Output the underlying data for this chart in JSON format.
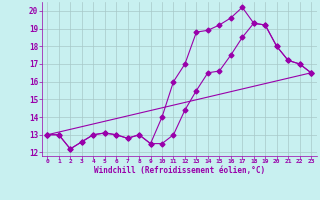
{
  "xlabel": "Windchill (Refroidissement éolien,°C)",
  "bg_color": "#c8f0f0",
  "grid_color": "#a8c8c8",
  "line_color": "#9900aa",
  "xlim": [
    -0.5,
    23.5
  ],
  "ylim": [
    11.8,
    20.5
  ],
  "xticks": [
    0,
    1,
    2,
    3,
    4,
    5,
    6,
    7,
    8,
    9,
    10,
    11,
    12,
    13,
    14,
    15,
    16,
    17,
    18,
    19,
    20,
    21,
    22,
    23
  ],
  "yticks": [
    12,
    13,
    14,
    15,
    16,
    17,
    18,
    19,
    20
  ],
  "line1_x": [
    0,
    1,
    2,
    3,
    4,
    5,
    6,
    7,
    8,
    9,
    10,
    11,
    12,
    13,
    14,
    15,
    16,
    17,
    18,
    19,
    20,
    21,
    22,
    23
  ],
  "line1_y": [
    13.0,
    13.0,
    12.2,
    12.6,
    13.0,
    13.1,
    13.0,
    12.8,
    13.0,
    12.5,
    12.5,
    13.0,
    14.4,
    15.5,
    16.5,
    16.6,
    17.5,
    18.5,
    19.3,
    19.2,
    18.0,
    17.2,
    17.0,
    16.5
  ],
  "line2_x": [
    0,
    1,
    2,
    3,
    4,
    5,
    6,
    7,
    8,
    9,
    10,
    11,
    12,
    13,
    14,
    15,
    16,
    17,
    18,
    19,
    20,
    21,
    22,
    23
  ],
  "line2_y": [
    13.0,
    13.0,
    12.2,
    12.6,
    13.0,
    13.1,
    13.0,
    12.8,
    13.0,
    12.5,
    14.0,
    16.0,
    17.0,
    18.8,
    18.9,
    19.2,
    19.6,
    20.2,
    19.3,
    19.2,
    18.0,
    17.2,
    17.0,
    16.5
  ],
  "line3_x": [
    0,
    23
  ],
  "line3_y": [
    13.0,
    16.5
  ]
}
